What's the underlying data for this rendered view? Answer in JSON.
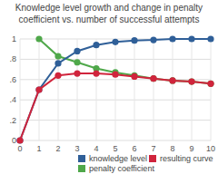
{
  "chart_data": {
    "type": "line",
    "title": "Knowledge level growth and change in penalty coefficient vs. number of successful attempts",
    "x": [
      0,
      1,
      2,
      3,
      4,
      5,
      6,
      7,
      8,
      9,
      10
    ],
    "xlim": [
      0,
      10
    ],
    "xticks": [
      0,
      1,
      2,
      3,
      4,
      5,
      6,
      7,
      8,
      9,
      10
    ],
    "ylim": [
      0,
      1
    ],
    "yticks": [
      0,
      {
        "value": 0.2,
        "label": ".2"
      },
      {
        "value": 0.4,
        "label": ".4"
      },
      {
        "value": 0.6,
        "label": ".6"
      },
      {
        "value": 0.8,
        "label": ".8"
      },
      1
    ],
    "grid": true,
    "legend": "bottom",
    "marker": "circle",
    "series": [
      {
        "name": "knowledge level",
        "color": "#2f5f98",
        "values": [
          0,
          0.5,
          0.76,
          0.88,
          0.94,
          0.97,
          0.985,
          0.99,
          1,
          1,
          1
        ]
      },
      {
        "name": "resulting curve",
        "color": "#d0243c",
        "values": [
          0,
          0.5,
          0.64,
          0.66,
          0.66,
          0.65,
          0.63,
          0.61,
          0.59,
          0.58,
          0.56
        ]
      },
      {
        "name": "penalty coefficient",
        "color": "#4fa84a",
        "values": [
          null,
          1,
          0.83,
          0.77,
          0.71,
          0.67,
          0.64,
          0.61,
          0.59,
          0.58,
          0.56
        ]
      }
    ]
  }
}
